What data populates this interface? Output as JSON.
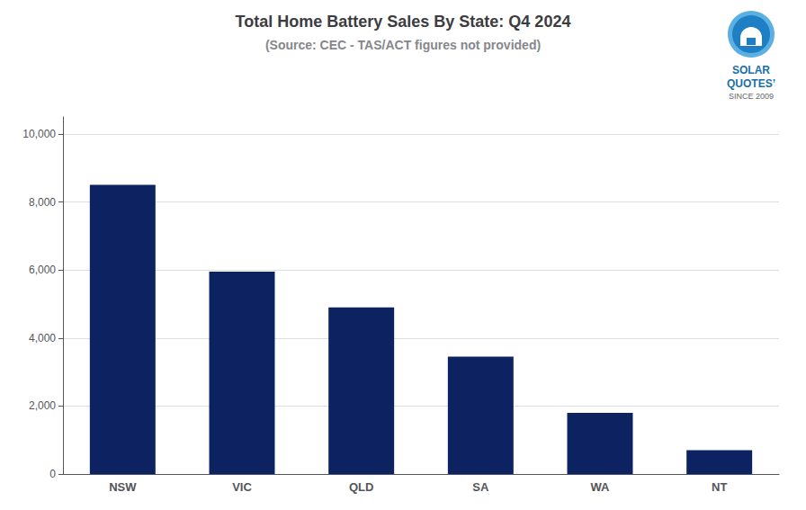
{
  "chart_data": {
    "type": "bar",
    "title": "Total Home Battery Sales By State: Q4 2024",
    "subtitle": "(Source: CEC - TAS/ACT figures not provided)",
    "categories": [
      "NSW",
      "VIC",
      "QLD",
      "SA",
      "WA",
      "NT"
    ],
    "values": [
      8500,
      5950,
      4900,
      3450,
      1800,
      700
    ],
    "color": "#0d2260",
    "ylim": [
      0,
      10500
    ],
    "yticks": [
      0,
      {
        "value": 2000,
        "label": "2,000"
      },
      {
        "value": 4000,
        "label": "4,000"
      },
      {
        "value": 6000,
        "label": "6,000"
      },
      {
        "value": 8000,
        "label": "8,000"
      },
      {
        "value": 10000,
        "label": "10,000"
      }
    ],
    "grid": true,
    "annotations": [
      "SOLAR",
      "QUOTES’",
      "SINCE 2009"
    ]
  }
}
